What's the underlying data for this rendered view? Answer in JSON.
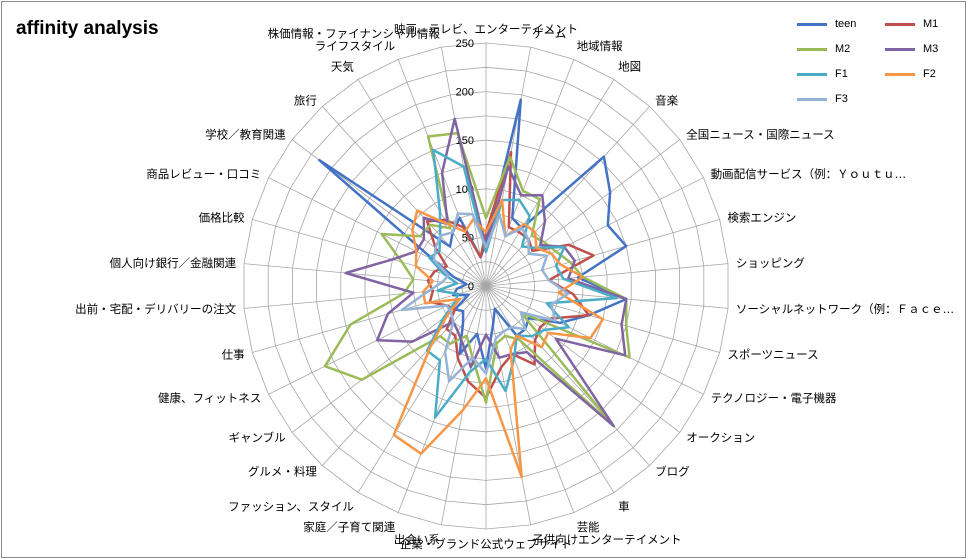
{
  "chart_data": {
    "type": "radar",
    "title": "affinity analysis",
    "r_ticks": [
      "0",
      "50",
      "100",
      "150",
      "200",
      "250"
    ],
    "rlim": [
      0,
      250
    ],
    "grid": true,
    "legend_position": "top-right",
    "categories": [
      "映画、テレビ、エンターテイメント",
      "ゲーム",
      "地域情報",
      "地図",
      "音楽",
      "全国ニュース・国際ニュース",
      "動画配信サービス（例：Ｙｏｕｔｕ…",
      "検索エンジン",
      "ショッピング",
      "ソーシャルネットワーク（例：Ｆａｃｅ…",
      "スポーツニュース",
      "テクノロジー・電子機器",
      "オークション",
      "ブログ",
      "車",
      "芸能",
      "子供向けエンターテイメント",
      "企業・ブランド公式ウェブサイト",
      "出会い系",
      "家庭／子育て関連",
      "ファッション、スタイル",
      "グルメ・料理",
      "ギャンブル",
      "健康、フィットネス",
      "仕事",
      "出前・宅配・デリバリーの注文",
      "個人向け銀行／金融関連",
      "価格比較",
      "商品レビュー・口コミ",
      "学校／教育関連",
      "旅行",
      "天気",
      "ライフスタイル",
      "株価情報・ファイナンシャル情報"
    ],
    "series": [
      {
        "name": "teen",
        "color": "#4472c4",
        "values": [
          45,
          195,
          75,
          70,
          180,
          160,
          140,
          150,
          95,
          145,
          110,
          85,
          55,
          60,
          60,
          25,
          40,
          85,
          50,
          75,
          45,
          35,
          40,
          20,
          35,
          30,
          20,
          35,
          60,
          215,
          55,
          65,
          75,
          30
        ]
      },
      {
        "name": "M1",
        "color": "#c0504d",
        "values": [
          55,
          140,
          65,
          65,
          65,
          60,
          95,
          115,
          65,
          90,
          110,
          75,
          70,
          75,
          95,
          75,
          85,
          115,
          100,
          80,
          60,
          60,
          40,
          45,
          60,
          55,
          60,
          55,
          45,
          65,
          90,
          80,
          65,
          30
        ]
      },
      {
        "name": "M2",
        "color": "#9bbb59",
        "values": [
          70,
          135,
          105,
          105,
          70,
          75,
          80,
          90,
          100,
          145,
          150,
          165,
          45,
          195,
          65,
          55,
          60,
          120,
          75,
          55,
          70,
          70,
          160,
          185,
          145,
          85,
          75,
          90,
          120,
          85,
          85,
          70,
          165,
          160
        ]
      },
      {
        "name": "M3",
        "color": "#8064a2",
        "values": [
          40,
          125,
          100,
          110,
          90,
          70,
          90,
          95,
          85,
          145,
          145,
          160,
          90,
          195,
          80,
          75,
          75,
          50,
          85,
          65,
          55,
          50,
          95,
          125,
          105,
          75,
          145,
          100,
          80,
          80,
          95,
          75,
          125,
          175
        ]
      },
      {
        "name": "F1",
        "color": "#4bacc6",
        "values": [
          35,
          90,
          95,
          85,
          55,
          65,
          90,
          75,
          80,
          135,
          65,
          95,
          75,
          70,
          60,
          80,
          110,
          75,
          90,
          145,
          90,
          90,
          55,
          35,
          30,
          50,
          30,
          45,
          65,
          60,
          70,
          90,
          150,
          125
        ]
      },
      {
        "name": "F2",
        "color": "#f79646",
        "values": [
          55,
          90,
          55,
          75,
          75,
          65,
          75,
          80,
          100,
          75,
          125,
          120,
          80,
          85,
          60,
          70,
          200,
          95,
          130,
          185,
          180,
          85,
          50,
          30,
          65,
          65,
          55,
          75,
          80,
          95,
          105,
          75,
          60,
          70
        ]
      },
      {
        "name": "F3",
        "color": "#95b3d7",
        "values": [
          40,
          75,
          55,
          70,
          65,
          55,
          70,
          60,
          65,
          85,
          70,
          80,
          45,
          60,
          50,
          50,
          55,
          90,
          75,
          105,
          80,
          50,
          45,
          45,
          90,
          60,
          45,
          40,
          60,
          65,
          70,
          65,
          80,
          75
        ]
      }
    ]
  }
}
